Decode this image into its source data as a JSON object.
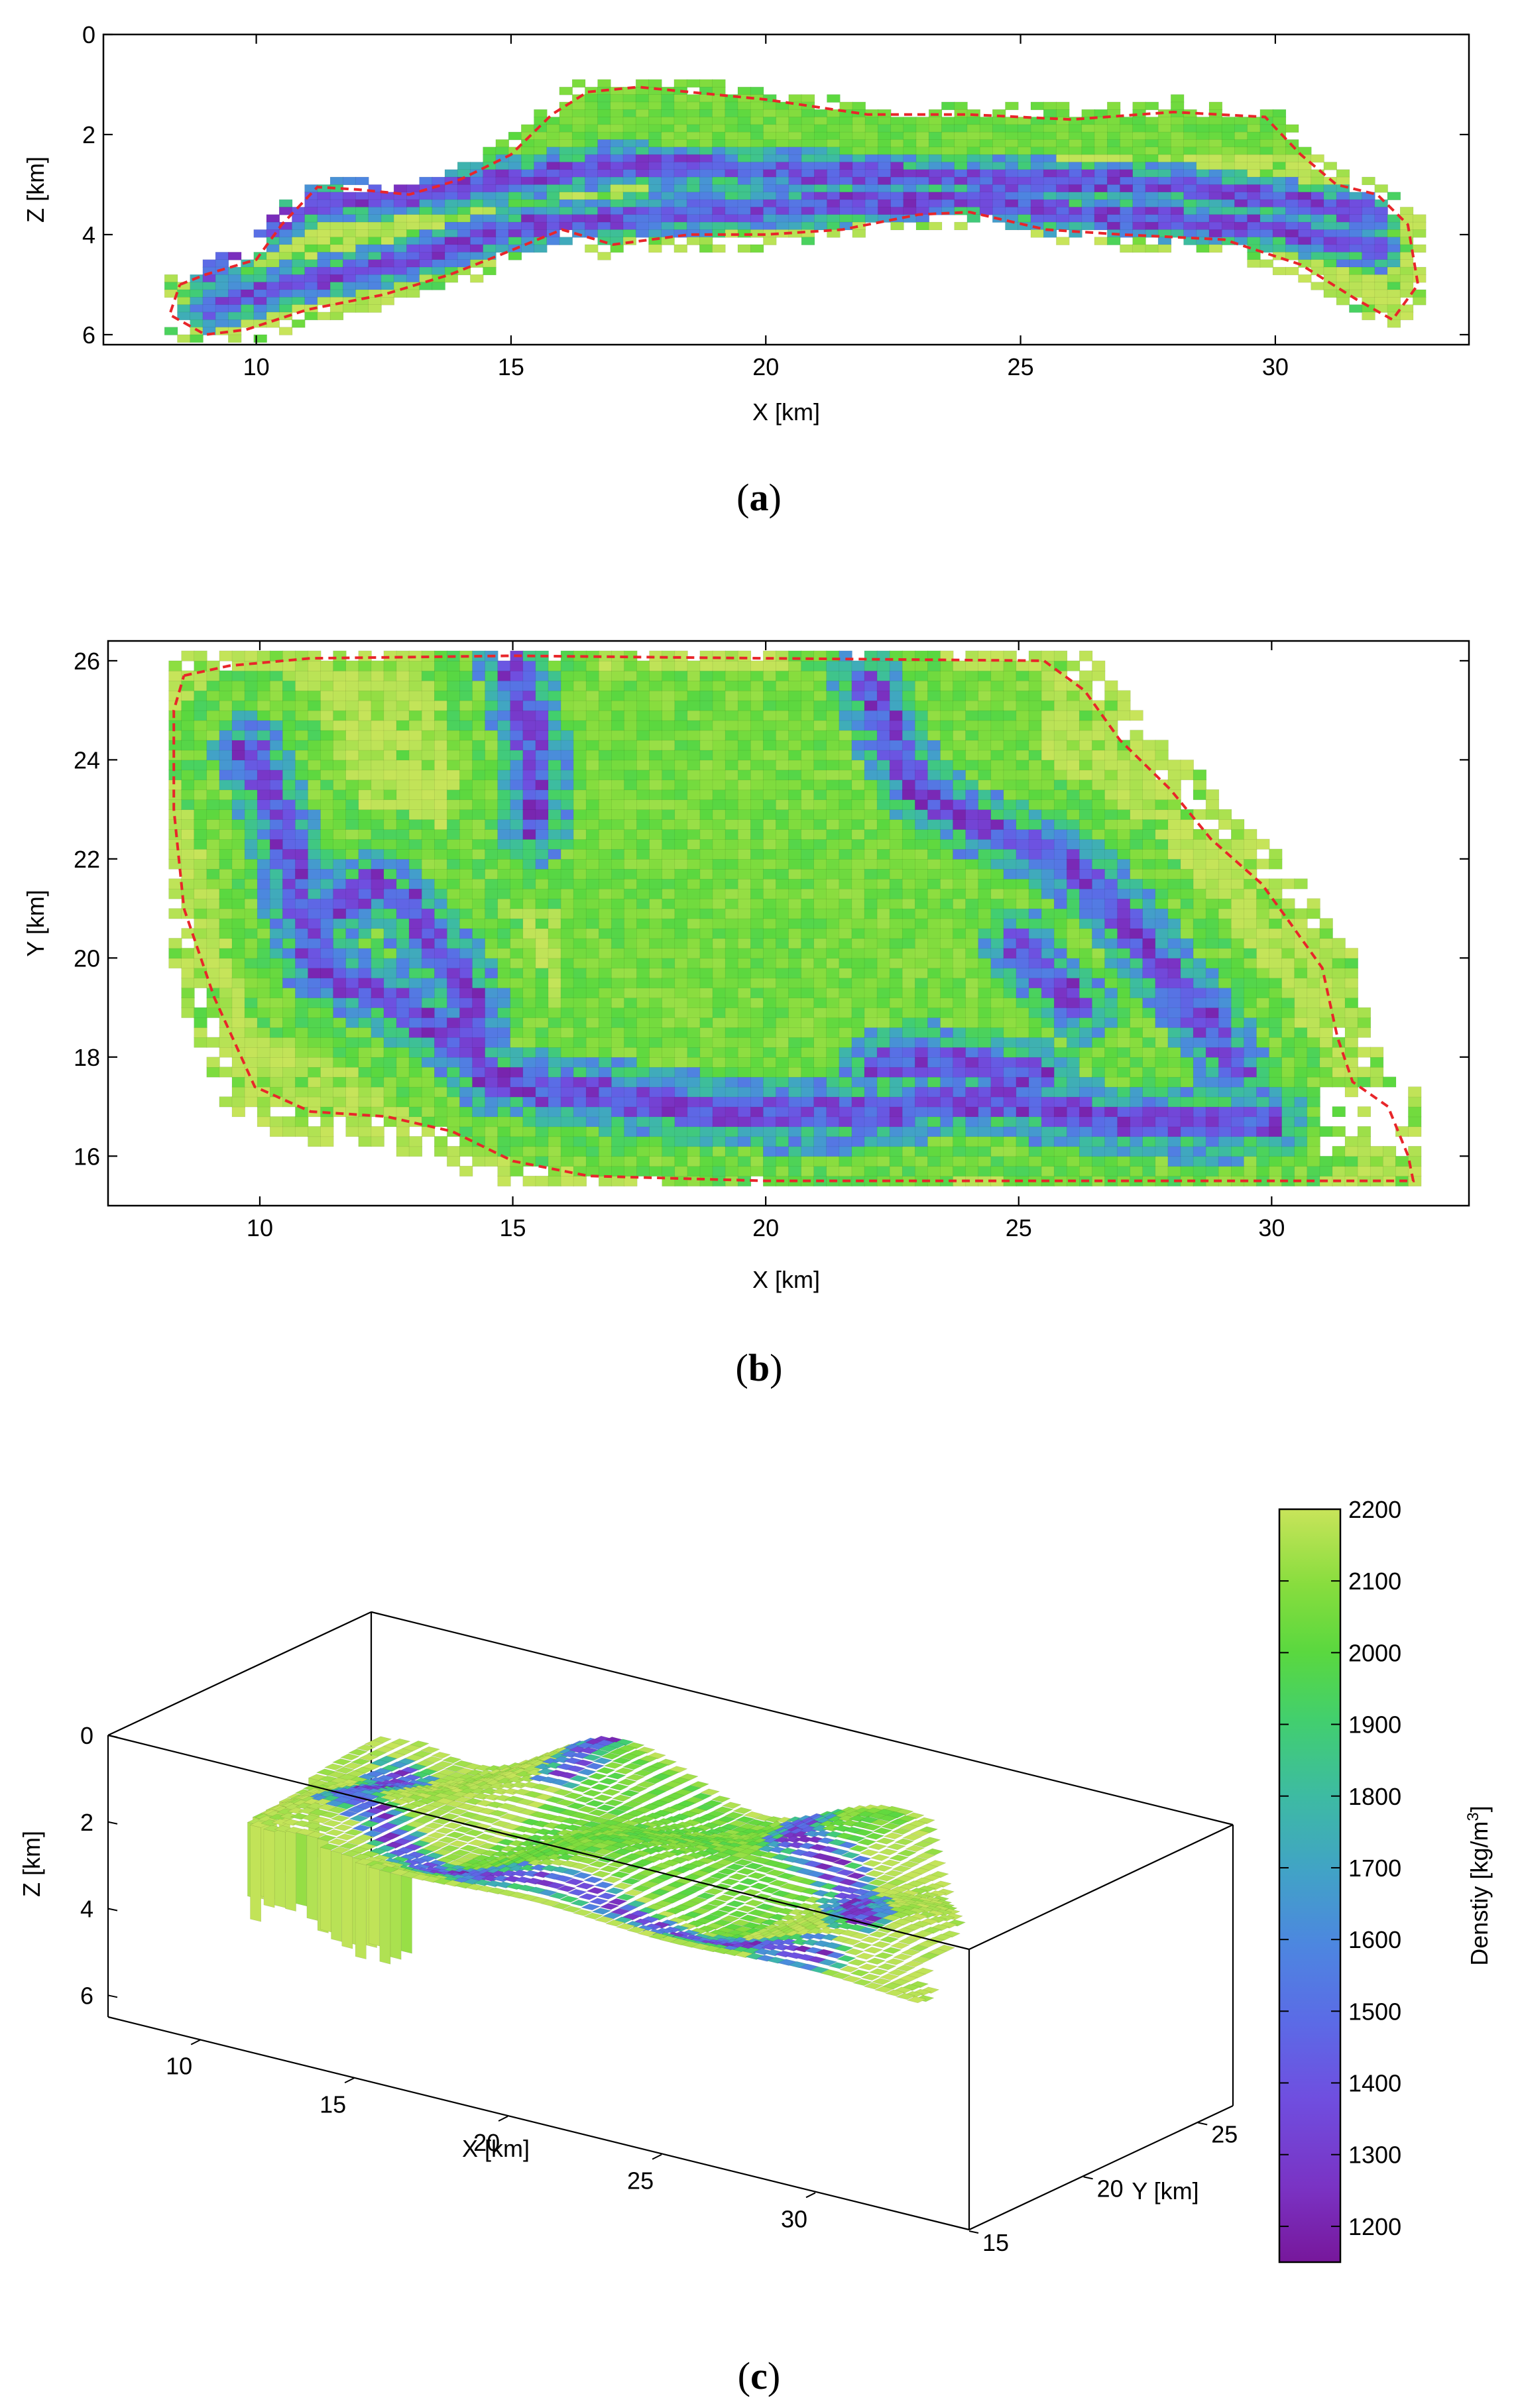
{
  "chart_data": [
    {
      "id": "a",
      "type": "heatmap",
      "caption": "a",
      "xlabel": "X [km]",
      "ylabel": "Z [km]",
      "xlim": [
        7,
        33.8
      ],
      "ylim": [
        0,
        6.2
      ],
      "y_inverted": true,
      "xticks": [
        10,
        15,
        20,
        25,
        30
      ],
      "yticks": [
        0,
        2,
        4,
        6
      ],
      "grid": false,
      "colormap": "density",
      "boundary": {
        "style": "dashed",
        "color": "#e8262a",
        "points": [
          [
            8.5,
            5.0
          ],
          [
            9.0,
            4.8
          ],
          [
            10.0,
            4.5
          ],
          [
            10.5,
            3.8
          ],
          [
            11.2,
            3.05
          ],
          [
            12.0,
            3.1
          ],
          [
            13.0,
            3.2
          ],
          [
            14.0,
            2.9
          ],
          [
            15.0,
            2.4
          ],
          [
            15.8,
            1.6
          ],
          [
            16.5,
            1.15
          ],
          [
            17.5,
            1.05
          ],
          [
            19.0,
            1.2
          ],
          [
            20.0,
            1.3
          ],
          [
            22.0,
            1.6
          ],
          [
            24.0,
            1.6
          ],
          [
            26.0,
            1.7
          ],
          [
            28.0,
            1.55
          ],
          [
            29.8,
            1.65
          ],
          [
            30.5,
            2.4
          ],
          [
            31.2,
            3.0
          ],
          [
            32.0,
            3.2
          ],
          [
            32.6,
            3.8
          ],
          [
            32.8,
            5.0
          ],
          [
            32.3,
            5.7
          ],
          [
            31.6,
            5.3
          ],
          [
            30.5,
            4.6
          ],
          [
            29.0,
            4.1
          ],
          [
            27.0,
            4.0
          ],
          [
            25.5,
            3.9
          ],
          [
            24.0,
            3.55
          ],
          [
            23.0,
            3.6
          ],
          [
            21.5,
            3.9
          ],
          [
            20.0,
            4.0
          ],
          [
            18.5,
            4.0
          ],
          [
            17.0,
            4.2
          ],
          [
            16.0,
            3.9
          ],
          [
            14.8,
            4.4
          ],
          [
            13.8,
            4.8
          ],
          [
            12.5,
            5.2
          ],
          [
            11.0,
            5.5
          ],
          [
            9.8,
            5.9
          ],
          [
            9.0,
            6.0
          ],
          [
            8.3,
            5.6
          ],
          [
            8.5,
            5.0
          ]
        ]
      }
    },
    {
      "id": "b",
      "type": "heatmap",
      "caption": "b",
      "xlabel": "X [km]",
      "ylabel": "Y [km]",
      "xlim": [
        7,
        33.9
      ],
      "ylim": [
        15,
        26.4
      ],
      "xticks": [
        10,
        15,
        20,
        25,
        30
      ],
      "yticks": [
        16,
        18,
        20,
        22,
        24,
        26
      ],
      "grid": false,
      "colormap": "density",
      "boundary": {
        "style": "dashed",
        "color": "#e8262a",
        "points": [
          [
            8.5,
            25.7
          ],
          [
            9.4,
            25.9
          ],
          [
            11.0,
            26.05
          ],
          [
            15.0,
            26.1
          ],
          [
            20.0,
            26.05
          ],
          [
            25.5,
            26.0
          ],
          [
            26.3,
            25.4
          ],
          [
            27.0,
            24.4
          ],
          [
            28.0,
            23.4
          ],
          [
            28.8,
            22.4
          ],
          [
            29.8,
            21.5
          ],
          [
            30.3,
            20.8
          ],
          [
            31.0,
            19.8
          ],
          [
            31.3,
            18.4
          ],
          [
            31.6,
            17.5
          ],
          [
            32.3,
            17.0
          ],
          [
            32.7,
            16.0
          ],
          [
            32.8,
            15.5
          ],
          [
            29.0,
            15.5
          ],
          [
            25.0,
            15.5
          ],
          [
            20.0,
            15.5
          ],
          [
            16.5,
            15.6
          ],
          [
            15.0,
            15.9
          ],
          [
            13.8,
            16.5
          ],
          [
            12.5,
            16.8
          ],
          [
            11.0,
            16.9
          ],
          [
            9.9,
            17.4
          ],
          [
            9.1,
            19.2
          ],
          [
            8.5,
            21.0
          ],
          [
            8.3,
            23.0
          ],
          [
            8.3,
            25.0
          ],
          [
            8.5,
            25.7
          ]
        ]
      }
    },
    {
      "id": "c",
      "type": "heatmap",
      "caption": "c",
      "xlabel": "X [km]",
      "ylabel": "Y [km]",
      "zlabel": "Z [km]",
      "xticks": [
        10,
        15,
        20,
        25,
        30
      ],
      "yticks": [
        15,
        20,
        25
      ],
      "zticks": [
        0,
        2,
        4,
        6
      ],
      "xlim": [
        7,
        35
      ],
      "ylim": [
        15,
        26.5
      ],
      "zlim": [
        0,
        6.5
      ],
      "grid": false,
      "colormap": "density"
    }
  ],
  "colorbar": {
    "label": "Denstiy [kg/m",
    "label_superscript": "3",
    "label_close": "]",
    "ticks": [
      "1200",
      "1300",
      "1400",
      "1500",
      "1600",
      "1700",
      "1800",
      "1900",
      "2000",
      "2100",
      "2200"
    ],
    "range": [
      1150,
      2200
    ],
    "colors": [
      "#77179b",
      "#7a33c4",
      "#6f4fe0",
      "#5b6be6",
      "#4d86e0",
      "#41a3c6",
      "#3dbba2",
      "#42cf6e",
      "#5ad83f",
      "#88dd3e",
      "#b5e255",
      "#c8e45a"
    ]
  }
}
